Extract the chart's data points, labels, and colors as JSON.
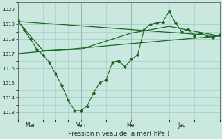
{
  "background_color": "#c8e8e0",
  "grid_color": "#a0c8c0",
  "line_color": "#1a6620",
  "xlabel": "Pression niveau de la mer( hPa )",
  "ylim": [
    1012.5,
    1020.5
  ],
  "yticks": [
    1013,
    1014,
    1015,
    1016,
    1017,
    1018,
    1019,
    1020
  ],
  "xlim": [
    0,
    96
  ],
  "xtick_positions": [
    6,
    30,
    54,
    78
  ],
  "xtick_labels": [
    "Mar",
    "Ven",
    "Mer",
    "Jeu"
  ],
  "x_vlines": [
    0,
    6,
    30,
    54,
    78,
    96
  ],
  "series1_x": [
    0,
    3,
    6,
    9,
    12,
    15,
    18,
    21,
    24,
    27,
    30,
    33,
    36,
    39,
    42,
    45,
    48,
    51,
    54,
    57,
    60,
    63,
    66,
    69,
    72,
    75,
    78,
    81,
    84,
    87,
    90,
    93,
    96
  ],
  "series1_y": [
    1019.3,
    1018.6,
    1018.0,
    1017.3,
    1016.9,
    1016.4,
    1015.6,
    1014.8,
    1013.8,
    1013.1,
    1013.1,
    1013.4,
    1014.3,
    1015.0,
    1015.2,
    1016.4,
    1016.5,
    1016.1,
    1016.6,
    1016.9,
    1018.6,
    1019.0,
    1019.1,
    1019.15,
    1019.9,
    1019.1,
    1018.5,
    1018.65,
    1018.2,
    1018.4,
    1018.2,
    1018.1,
    1018.3
  ],
  "series2_x": [
    0,
    96
  ],
  "series2_y": [
    1019.2,
    1018.2
  ],
  "series3_x": [
    0,
    96
  ],
  "series3_y": [
    1017.0,
    1018.2
  ],
  "series4_x": [
    0,
    12,
    30,
    54,
    72,
    96
  ],
  "series4_y": [
    1019.2,
    1017.2,
    1017.3,
    1018.4,
    1018.85,
    1018.2
  ]
}
